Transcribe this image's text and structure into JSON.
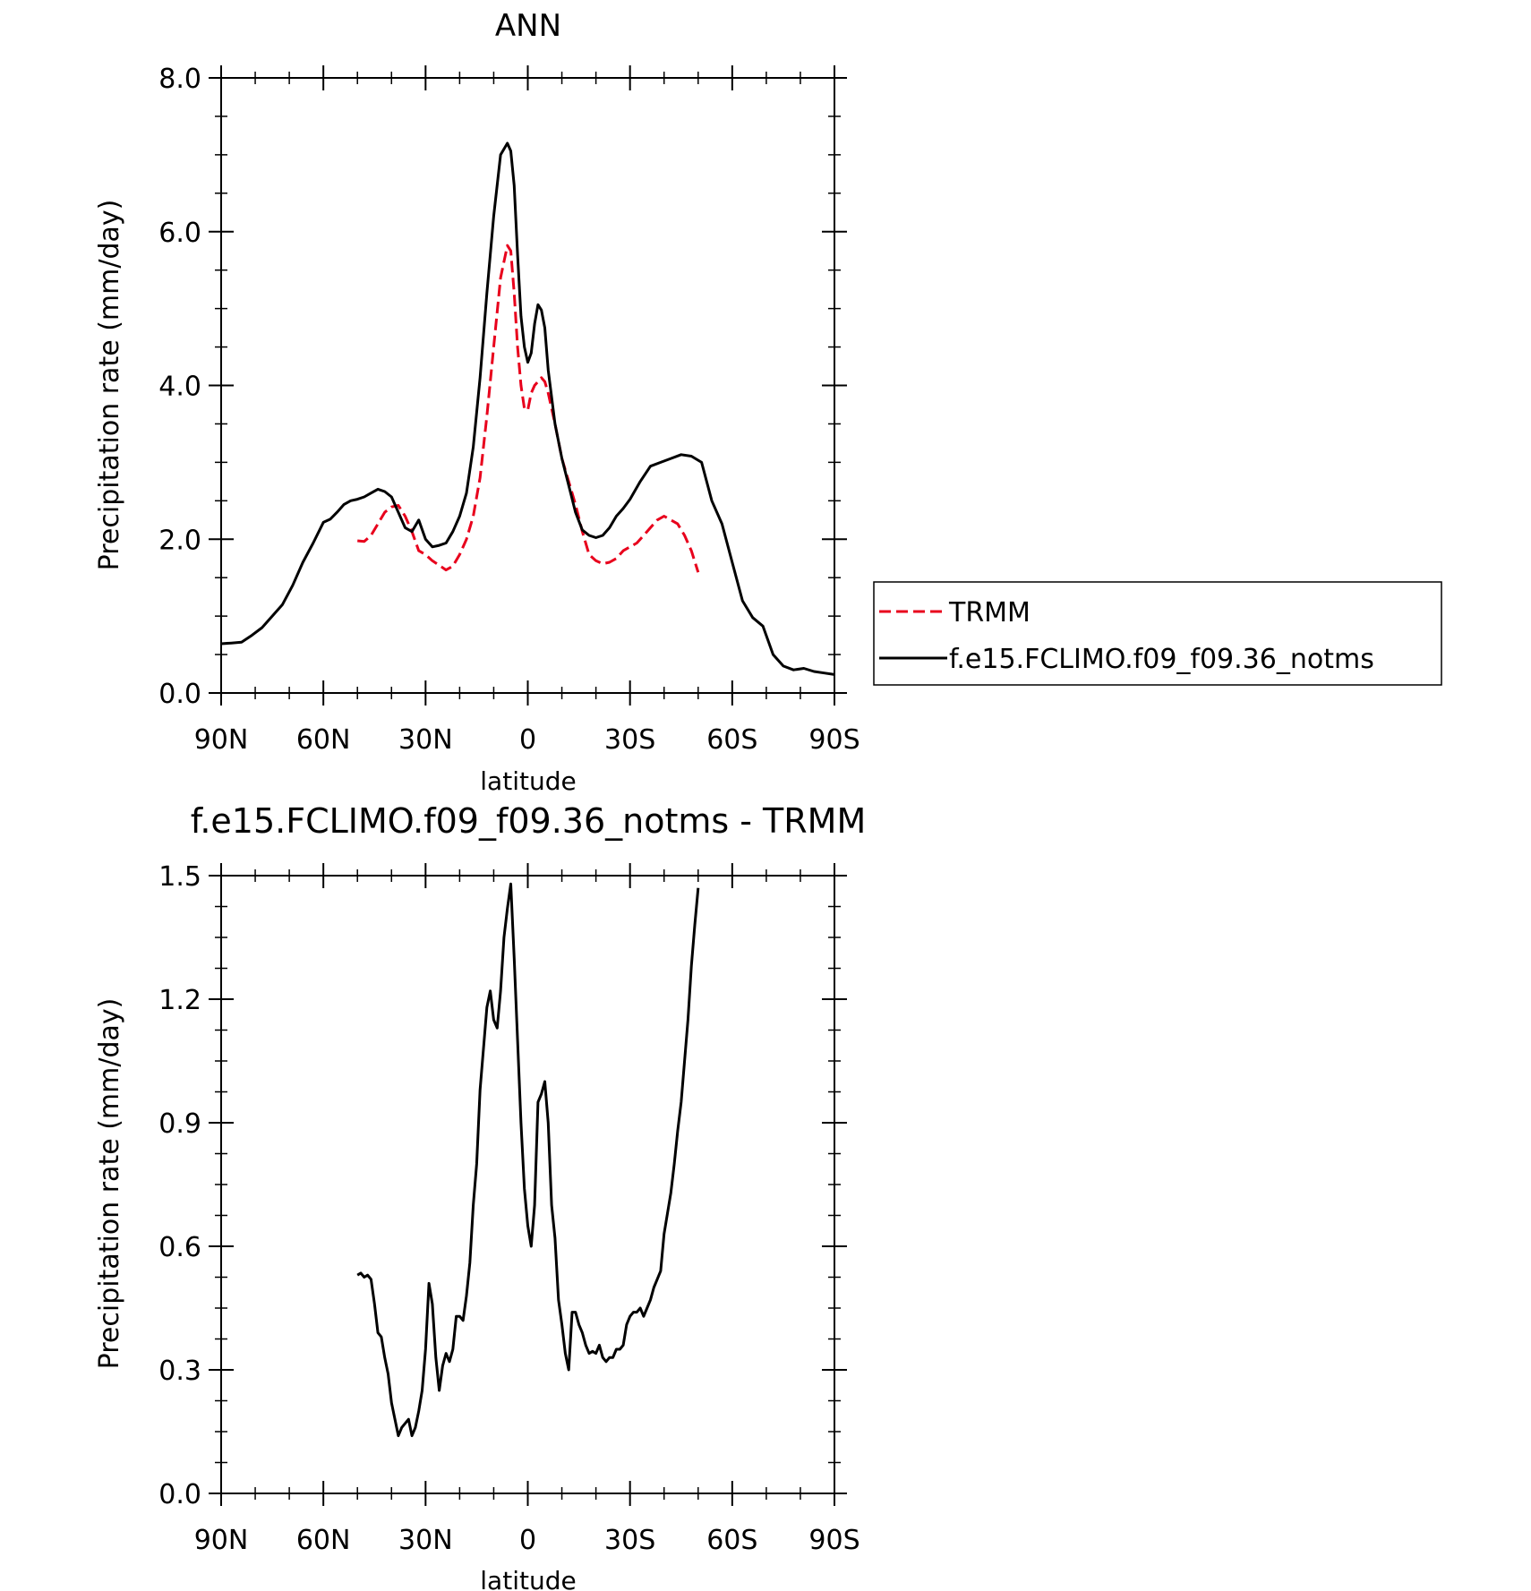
{
  "chart_data": [
    {
      "type": "line",
      "title": "ANN",
      "xlabel": "latitude",
      "ylabel": "Precipitation rate (mm/day)",
      "xlim": [
        90,
        -90
      ],
      "ylim": [
        0,
        8
      ],
      "xticks": [
        {
          "value": 90,
          "label": "90N"
        },
        {
          "value": 60,
          "label": "60N"
        },
        {
          "value": 30,
          "label": "30N"
        },
        {
          "value": 0,
          "label": "0"
        },
        {
          "value": -30,
          "label": "30S"
        },
        {
          "value": -60,
          "label": "60S"
        },
        {
          "value": -90,
          "label": "90S"
        }
      ],
      "yticks": [
        {
          "value": 0,
          "label": "0.0"
        },
        {
          "value": 2,
          "label": "2.0"
        },
        {
          "value": 4,
          "label": "4.0"
        },
        {
          "value": 6,
          "label": "6.0"
        },
        {
          "value": 8,
          "label": "8.0"
        }
      ],
      "legend": "right",
      "series": [
        {
          "name": "TRMM",
          "color": "#e8001c",
          "dash": true,
          "x": [
            50,
            48,
            46,
            44,
            42,
            40,
            38,
            36,
            34,
            32,
            30,
            28,
            26,
            24,
            22,
            20,
            18,
            16,
            14,
            12,
            10,
            8,
            6,
            5,
            4,
            3,
            2,
            1,
            0,
            -1,
            -2,
            -3,
            -4,
            -5,
            -6,
            -8,
            -10,
            -12,
            -14,
            -16,
            -18,
            -20,
            -22,
            -24,
            -26,
            -28,
            -30,
            -32,
            -34,
            -36,
            -38,
            -40,
            -42,
            -44,
            -46,
            -48,
            -50
          ],
          "y": [
            1.98,
            1.97,
            2.05,
            2.2,
            2.35,
            2.42,
            2.44,
            2.3,
            2.1,
            1.85,
            1.8,
            1.72,
            1.66,
            1.6,
            1.65,
            1.8,
            2.0,
            2.3,
            2.8,
            3.6,
            4.5,
            5.4,
            5.82,
            5.75,
            5.2,
            4.5,
            4.0,
            3.7,
            3.68,
            3.9,
            4.0,
            4.05,
            4.1,
            4.05,
            3.9,
            3.5,
            3.05,
            2.75,
            2.45,
            2.1,
            1.8,
            1.72,
            1.68,
            1.7,
            1.75,
            1.85,
            1.9,
            1.95,
            2.05,
            2.15,
            2.25,
            2.3,
            2.25,
            2.2,
            2.05,
            1.85,
            1.57
          ]
        },
        {
          "name": "f.e15.FCLIMO.f09_f09.36_notms",
          "color": "#000000",
          "dash": false,
          "x": [
            90,
            87,
            84,
            81,
            78,
            75,
            72,
            69,
            66,
            63,
            60,
            58,
            56,
            54,
            52,
            50,
            48,
            46,
            44,
            42,
            40,
            38,
            36,
            34,
            32,
            30,
            28,
            26,
            24,
            22,
            20,
            18,
            16,
            14,
            12,
            10,
            8,
            6,
            5,
            4,
            3,
            2,
            1,
            0,
            -1,
            -2,
            -3,
            -4,
            -5,
            -6,
            -8,
            -10,
            -12,
            -14,
            -16,
            -18,
            -20,
            -22,
            -24,
            -26,
            -28,
            -30,
            -33,
            -36,
            -39,
            -42,
            -45,
            -48,
            -51,
            -54,
            -57,
            -60,
            -63,
            -66,
            -69,
            -72,
            -75,
            -78,
            -81,
            -84,
            -87,
            -90
          ],
          "y": [
            0.64,
            0.65,
            0.66,
            0.75,
            0.85,
            1.0,
            1.15,
            1.4,
            1.7,
            1.95,
            2.22,
            2.26,
            2.35,
            2.45,
            2.5,
            2.52,
            2.55,
            2.6,
            2.65,
            2.62,
            2.55,
            2.35,
            2.15,
            2.1,
            2.25,
            2.0,
            1.9,
            1.92,
            1.95,
            2.1,
            2.3,
            2.6,
            3.2,
            4.1,
            5.2,
            6.2,
            7.0,
            7.15,
            7.05,
            6.6,
            5.7,
            4.9,
            4.5,
            4.3,
            4.42,
            4.8,
            5.05,
            4.98,
            4.75,
            4.2,
            3.5,
            3.05,
            2.7,
            2.35,
            2.12,
            2.05,
            2.02,
            2.05,
            2.15,
            2.3,
            2.4,
            2.52,
            2.75,
            2.95,
            3.0,
            3.05,
            3.1,
            3.08,
            3.0,
            2.5,
            2.2,
            1.7,
            1.2,
            0.98,
            0.87,
            0.5,
            0.35,
            0.3,
            0.32,
            0.28,
            0.26,
            0.24
          ]
        }
      ]
    },
    {
      "type": "line",
      "title": "f.e15.FCLIMO.f09_f09.36_notms - TRMM",
      "xlabel": "latitude",
      "ylabel": "Precipitation rate (mm/day)",
      "xlim": [
        90,
        -90
      ],
      "ylim": [
        0,
        1.5
      ],
      "xticks": [
        {
          "value": 90,
          "label": "90N"
        },
        {
          "value": 60,
          "label": "60N"
        },
        {
          "value": 30,
          "label": "30N"
        },
        {
          "value": 0,
          "label": "0"
        },
        {
          "value": -30,
          "label": "30S"
        },
        {
          "value": -60,
          "label": "60S"
        },
        {
          "value": -90,
          "label": "90S"
        }
      ],
      "yticks": [
        {
          "value": 0,
          "label": "0.0"
        },
        {
          "value": 0.3,
          "label": "0.3"
        },
        {
          "value": 0.6,
          "label": "0.6"
        },
        {
          "value": 0.9,
          "label": "0.9"
        },
        {
          "value": 1.2,
          "label": "1.2"
        },
        {
          "value": 1.5,
          "label": "1.5"
        }
      ],
      "series": [
        {
          "color": "#000000",
          "dash": false,
          "x": [
            50,
            49,
            48,
            47,
            46,
            45,
            44,
            43,
            42,
            41,
            40,
            39,
            38,
            37,
            36,
            35,
            34,
            33,
            32,
            31,
            30,
            29,
            28,
            27,
            26,
            25,
            24,
            23,
            22,
            21,
            20,
            19,
            18,
            17,
            16,
            15,
            14,
            13,
            12,
            11,
            10,
            9,
            8,
            7,
            6,
            5,
            4,
            3,
            2,
            1,
            0,
            -1,
            -2,
            -3,
            -4,
            -5,
            -6,
            -7,
            -8,
            -9,
            -10,
            -11,
            -12,
            -13,
            -14,
            -15,
            -16,
            -17,
            -18,
            -19,
            -20,
            -21,
            -22,
            -23,
            -24,
            -25,
            -26,
            -27,
            -28,
            -29,
            -30,
            -31,
            -32,
            -33,
            -34,
            -35,
            -36,
            -37,
            -38,
            -39,
            -40,
            -41,
            -42,
            -43,
            -44,
            -45,
            -46,
            -47,
            -48,
            -49,
            -50
          ],
          "y": [
            0.53,
            0.535,
            0.525,
            0.53,
            0.52,
            0.46,
            0.39,
            0.38,
            0.33,
            0.29,
            0.22,
            0.18,
            0.14,
            0.16,
            0.17,
            0.18,
            0.14,
            0.16,
            0.2,
            0.25,
            0.35,
            0.51,
            0.46,
            0.33,
            0.25,
            0.31,
            0.34,
            0.32,
            0.35,
            0.43,
            0.43,
            0.42,
            0.48,
            0.56,
            0.7,
            0.8,
            0.98,
            1.08,
            1.18,
            1.22,
            1.15,
            1.13,
            1.22,
            1.35,
            1.42,
            1.48,
            1.3,
            1.1,
            0.9,
            0.74,
            0.65,
            0.6,
            0.7,
            0.95,
            0.97,
            1.0,
            0.9,
            0.7,
            0.62,
            0.47,
            0.41,
            0.34,
            0.3,
            0.44,
            0.44,
            0.41,
            0.39,
            0.36,
            0.34,
            0.345,
            0.34,
            0.36,
            0.33,
            0.32,
            0.33,
            0.33,
            0.35,
            0.35,
            0.36,
            0.41,
            0.43,
            0.44,
            0.44,
            0.45,
            0.43,
            0.45,
            0.47,
            0.5,
            0.52,
            0.54,
            0.63,
            0.68,
            0.73,
            0.8,
            0.88,
            0.95,
            1.05,
            1.15,
            1.28,
            1.38,
            1.47
          ]
        }
      ]
    }
  ]
}
